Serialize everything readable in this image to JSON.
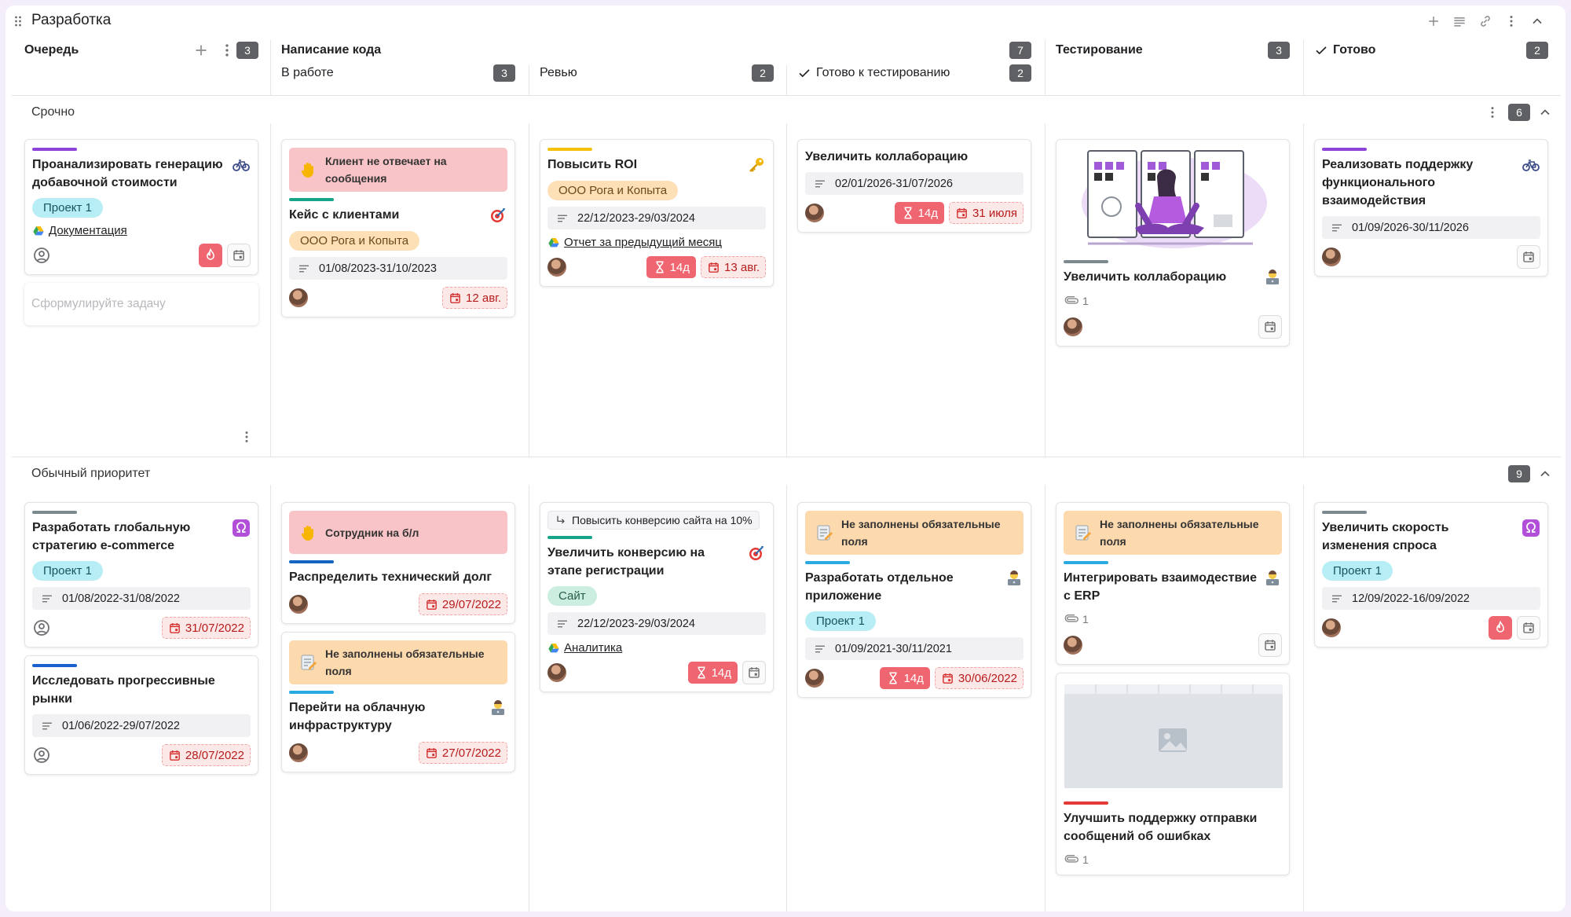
{
  "board": {
    "title": "Разработка",
    "new_task_placeholder": "Сформулируйте задачу"
  },
  "columns": [
    {
      "title": "Очередь",
      "count": 3
    },
    {
      "title": "Написание кода",
      "count": 7,
      "subcolumns": [
        {
          "title": "В работе",
          "count": 3
        },
        {
          "title": "Ревью",
          "count": 2
        },
        {
          "title": "Готово к тестированию",
          "count": 2,
          "done": true
        }
      ]
    },
    {
      "title": "Тестирование",
      "count": 3
    },
    {
      "title": "Готово",
      "count": 2,
      "done": true
    }
  ],
  "lanes": [
    {
      "title": "Срочно",
      "count": 6,
      "cells": [
        [
          {
            "stripe": "#8e44d8",
            "title": "Проанализировать генерацию добавочной стоимости",
            "icon": "bike",
            "tag": {
              "text": "Проект 1",
              "kind": "cyan"
            },
            "link": "Документация",
            "footer": {
              "person": "user",
              "fire": true,
              "calendar": true
            }
          }
        ],
        [
          {
            "alert": {
              "text": "Клиент не отвечает на сообщения",
              "kind": "danger"
            },
            "stripe": "#17a589",
            "title": "Кейс с клиентами",
            "icon": "target",
            "tag": {
              "text": "ООО Рога и Копыта",
              "kind": "orange"
            },
            "dates": "01/08/2023-31/10/2023",
            "footer": {
              "person": "avatar",
              "due": "12 авг."
            }
          }
        ],
        [
          {
            "stripe": "#f4c20d",
            "title": "Повысить ROI",
            "icon": "key",
            "tag": {
              "text": "ООО Рога и Копыта",
              "kind": "orange"
            },
            "dates": "22/12/2023-29/03/2024",
            "link": "Отчет за предыдущий месяц",
            "footer": {
              "person": "avatar",
              "timer": "14д",
              "due": "13 авг."
            }
          }
        ],
        [
          {
            "title": "Увеличить коллаборацию",
            "dates": "02/01/2026-31/07/2026",
            "footer": {
              "person": "avatar",
              "timer": "14д",
              "due": "31 июля"
            }
          }
        ],
        [
          {
            "image": "illustration",
            "stripe": "#7b8a8f",
            "title": "Увеличить коллаборацию",
            "icon": "coder",
            "attachments": 1,
            "footer": {
              "person": "avatar",
              "calendar": true
            }
          }
        ],
        [
          {
            "stripe": "#8e44d8",
            "title": "Реализовать поддержку функционального взаимодействия",
            "icon": "bike",
            "dates": "01/09/2026-30/11/2026",
            "footer": {
              "person": "avatar",
              "calendar": true
            }
          }
        ]
      ]
    },
    {
      "title": "Обычный приоритет",
      "count": 9,
      "cells": [
        [
          {
            "stripe": "#7b8a8f",
            "title": "Разработать глобальную стратегию e-commerce",
            "icon": "omega",
            "tag": {
              "text": "Проект 1",
              "kind": "cyan"
            },
            "dates": "01/08/2022-31/08/2022",
            "footer": {
              "person": "user",
              "due": "31/07/2022"
            }
          },
          {
            "stripe": "#1a5fd0",
            "title": "Исследовать прогрессивные рынки",
            "dates": "01/06/2022-29/07/2022",
            "footer": {
              "person": "user",
              "due": "28/07/2022"
            }
          }
        ],
        [
          {
            "alert": {
              "text": "Сотрудник на б/л",
              "kind": "danger"
            },
            "stripe": "#1565c0",
            "title": "Распределить технический долг",
            "footer": {
              "person": "avatar",
              "due": "29/07/2022"
            }
          },
          {
            "alert": {
              "text": "Не заполнены обязательные поля",
              "kind": "warn"
            },
            "stripe": "#29abe2",
            "title": "Перейти на облачную инфраструктуру",
            "icon": "coder",
            "footer": {
              "person": "avatar",
              "due": "27/07/2022"
            }
          }
        ],
        [
          {
            "parent": "Повысить конверсию сайта на 10%",
            "stripe": "#17a589",
            "title": "Увеличить конверсию на этапе регистрации",
            "icon": "target",
            "tag": {
              "text": "Сайт",
              "kind": "green"
            },
            "dates": "22/12/2023-29/03/2024",
            "link": "Аналитика",
            "footer": {
              "person": "avatar",
              "timer": "14д",
              "calendar": true
            }
          }
        ],
        [
          {
            "alert": {
              "text": "Не заполнены обязательные поля",
              "kind": "warn"
            },
            "stripe": "#29abe2",
            "title": "Разработать отдельное приложение",
            "icon": "coder",
            "tag": {
              "text": "Проект 1",
              "kind": "cyan"
            },
            "dates": "01/09/2021-30/11/2021",
            "footer": {
              "person": "avatar",
              "timer": "14д",
              "due": "30/06/2022"
            }
          }
        ],
        [
          {
            "alert": {
              "text": "Не заполнены обязательные поля",
              "kind": "warn"
            },
            "stripe": "#29abe2",
            "title": "Интегрировать взаимодествие с ERP",
            "icon": "coder",
            "attachments": 1,
            "footer": {
              "person": "avatar",
              "calendar": true
            }
          },
          {
            "image": "screenshot",
            "stripe": "#e53935",
            "title": "Улучшить поддержку отправки сообщений об ошибках",
            "attachments": 1
          }
        ],
        [
          {
            "stripe": "#7b8a8f",
            "title": "Увеличить скорость изменения спроса",
            "icon": "omega",
            "tag": {
              "text": "Проект 1",
              "kind": "cyan"
            },
            "dates": "12/09/2022-16/09/2022",
            "footer": {
              "person": "avatar",
              "fire": true,
              "calendar": true
            }
          }
        ]
      ]
    }
  ]
}
